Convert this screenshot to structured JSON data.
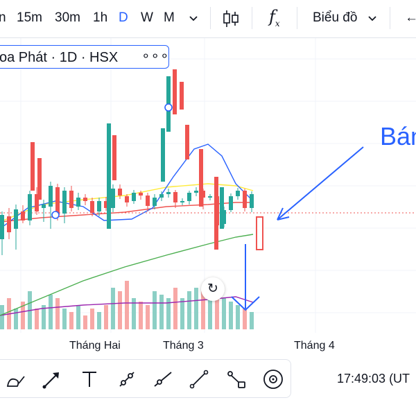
{
  "toolbar": {
    "intervals": [
      "n",
      "15m",
      "30m",
      "1h",
      "D",
      "W",
      "M"
    ],
    "active_interval": "D",
    "fx_label": "f",
    "fx_sub": "x",
    "chart_type_label": "Biểu đồ",
    "back_glyph": "←"
  },
  "symbol": {
    "text": "oa Phát · 1D · HSX",
    "more_glyph": "∘∘∘"
  },
  "xaxis": {
    "labels": [
      "Tháng Hai",
      "Tháng 3",
      "Tháng 4"
    ]
  },
  "reset": {
    "glyph": "↻"
  },
  "clock": "17:49:03 (UT",
  "annotation": {
    "text": "Bán"
  },
  "colors": {
    "up": "#26a69a",
    "down": "#ef5350",
    "accent": "#2962ff",
    "upVol": "#8ccfc5",
    "downVol": "#f7a8a6"
  },
  "drawing_tools": [
    "curve-tool-icon",
    "arrow-tool-icon",
    "text-tool-icon",
    "trend-line-icon",
    "ray-line-icon",
    "line-tool-icon",
    "segment-tool-icon",
    "eye-icon"
  ],
  "chart_data": {
    "type": "candlestick",
    "candles": [
      {
        "o": 345,
        "c": 310,
        "h": 368,
        "l": 305
      },
      {
        "o": 312,
        "c": 335,
        "h": 345,
        "l": 300
      },
      {
        "o": 330,
        "c": 302,
        "h": 360,
        "l": 295
      },
      {
        "o": 305,
        "c": 318,
        "h": 322,
        "l": 296
      },
      {
        "o": 318,
        "c": 280,
        "h": 325,
        "l": 275
      },
      {
        "o": 280,
        "c": 305,
        "h": 310,
        "l": 270
      },
      {
        "o": 300,
        "c": 295,
        "h": 320,
        "l": 288
      },
      {
        "o": 298,
        "c": 268,
        "h": 330,
        "l": 262
      },
      {
        "o": 270,
        "c": 310,
        "h": 318,
        "l": 265
      },
      {
        "o": 308,
        "c": 275,
        "h": 322,
        "l": 270
      },
      {
        "o": 275,
        "c": 300,
        "h": 305,
        "l": 268
      },
      {
        "o": 298,
        "c": 285,
        "h": 303,
        "l": 278
      },
      {
        "o": 285,
        "c": 290,
        "h": 296,
        "l": 280
      },
      {
        "o": 290,
        "c": 307,
        "h": 312,
        "l": 285
      },
      {
        "o": 305,
        "c": 290,
        "h": 312,
        "l": 285
      },
      {
        "o": 290,
        "c": 300,
        "h": 304,
        "l": 284
      },
      {
        "o": 300,
        "c": 272,
        "h": 306,
        "l": 266
      },
      {
        "o": 272,
        "c": 282,
        "h": 287,
        "l": 266
      },
      {
        "o": 283,
        "c": 292,
        "h": 298,
        "l": 280
      },
      {
        "o": 290,
        "c": 278,
        "h": 294,
        "l": 274
      },
      {
        "o": 278,
        "c": 282,
        "h": 288,
        "l": 275
      },
      {
        "o": 282,
        "c": 297,
        "h": 305,
        "l": 278
      },
      {
        "o": 297,
        "c": 285,
        "h": 302,
        "l": 280
      },
      {
        "o": 285,
        "c": 280,
        "h": 290,
        "l": 276
      },
      {
        "o": 280,
        "c": 277,
        "h": 285,
        "l": 272
      },
      {
        "o": 277,
        "c": 292,
        "h": 300,
        "l": 274
      },
      {
        "o": 292,
        "c": 290,
        "h": 296,
        "l": 286
      },
      {
        "o": 290,
        "c": 278,
        "h": 295,
        "l": 275
      },
      {
        "o": 278,
        "c": 275,
        "h": 283,
        "l": 270
      },
      {
        "o": 275,
        "c": 285,
        "h": 302,
        "l": 272
      },
      {
        "o": 285,
        "c": 283,
        "h": 289,
        "l": 280
      },
      {
        "o": 283,
        "c": 325,
        "h": 330,
        "l": 281
      },
      {
        "o": 323,
        "c": 303,
        "h": 328,
        "l": 298
      },
      {
        "o": 303,
        "c": 283,
        "h": 306,
        "l": 279
      },
      {
        "o": 283,
        "c": 275,
        "h": 288,
        "l": 271
      },
      {
        "o": 275,
        "c": 300,
        "h": 305,
        "l": 272
      },
      {
        "o": 300,
        "c": 280,
        "h": 306,
        "l": 276
      }
    ]
  }
}
